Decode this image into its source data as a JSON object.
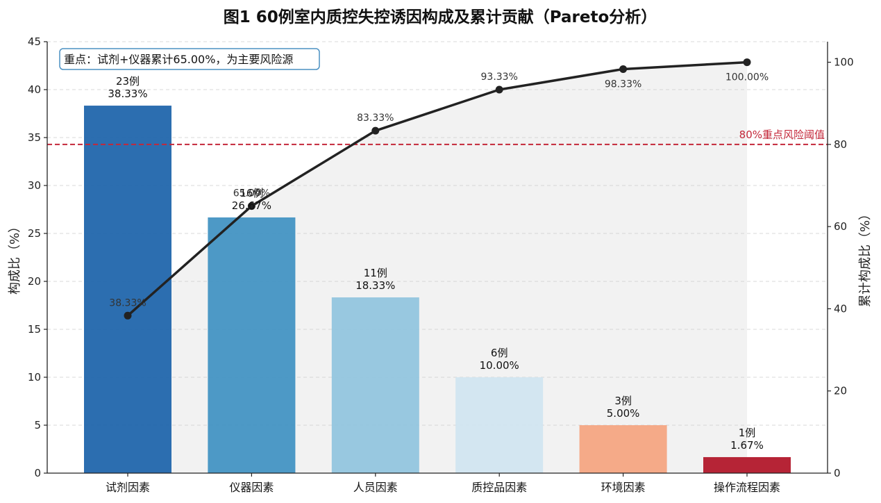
{
  "chart_data": {
    "type": "bar",
    "title": "图1 60例室内质控失控诱因构成及累计贡献（Pareto分析）",
    "categories": [
      "试剂因素",
      "仪器因素",
      "人员因素",
      "质控品因素",
      "环境因素",
      "操作流程因素"
    ],
    "series": [
      {
        "values": [
          38.33,
          26.67,
          18.33,
          10.0,
          5.0,
          1.67
        ],
        "counts": [
          "23例",
          "16例",
          "11例",
          "6例",
          "3例",
          "1例"
        ],
        "labels": [
          "38.33%",
          "26.67%",
          "18.33%",
          "10.00%",
          "5.00%",
          "1.67%"
        ],
        "colors": [
          "#2166ac",
          "#4393c3",
          "#92c5de",
          "#d1e5f0",
          "#f4a582",
          "#b2182b"
        ]
      },
      {
        "type": "line",
        "axis": "right",
        "values": [
          38.33,
          65.0,
          83.33,
          93.33,
          98.33,
          100.0
        ],
        "labels": [
          "38.33%",
          "65.00%",
          "83.33%",
          "93.33%",
          "98.33%",
          "100.00%"
        ],
        "color": "#222222"
      }
    ],
    "ylabel": "构成比（%）",
    "ylabel_right": "累计构成比（%）",
    "ylim": [
      0,
      45
    ],
    "ylim_right": [
      0,
      105
    ],
    "yticks": [
      0,
      5,
      10,
      15,
      20,
      25,
      30,
      35,
      40,
      45
    ],
    "yticks_right": [
      0,
      20,
      40,
      60,
      80,
      100
    ],
    "threshold": {
      "value": 80,
      "label": "80%重点风险阈值",
      "color": "#c4283a"
    },
    "annotation": "重点：试剂+仪器累计65.00%，为主要风险源",
    "grid": true
  }
}
